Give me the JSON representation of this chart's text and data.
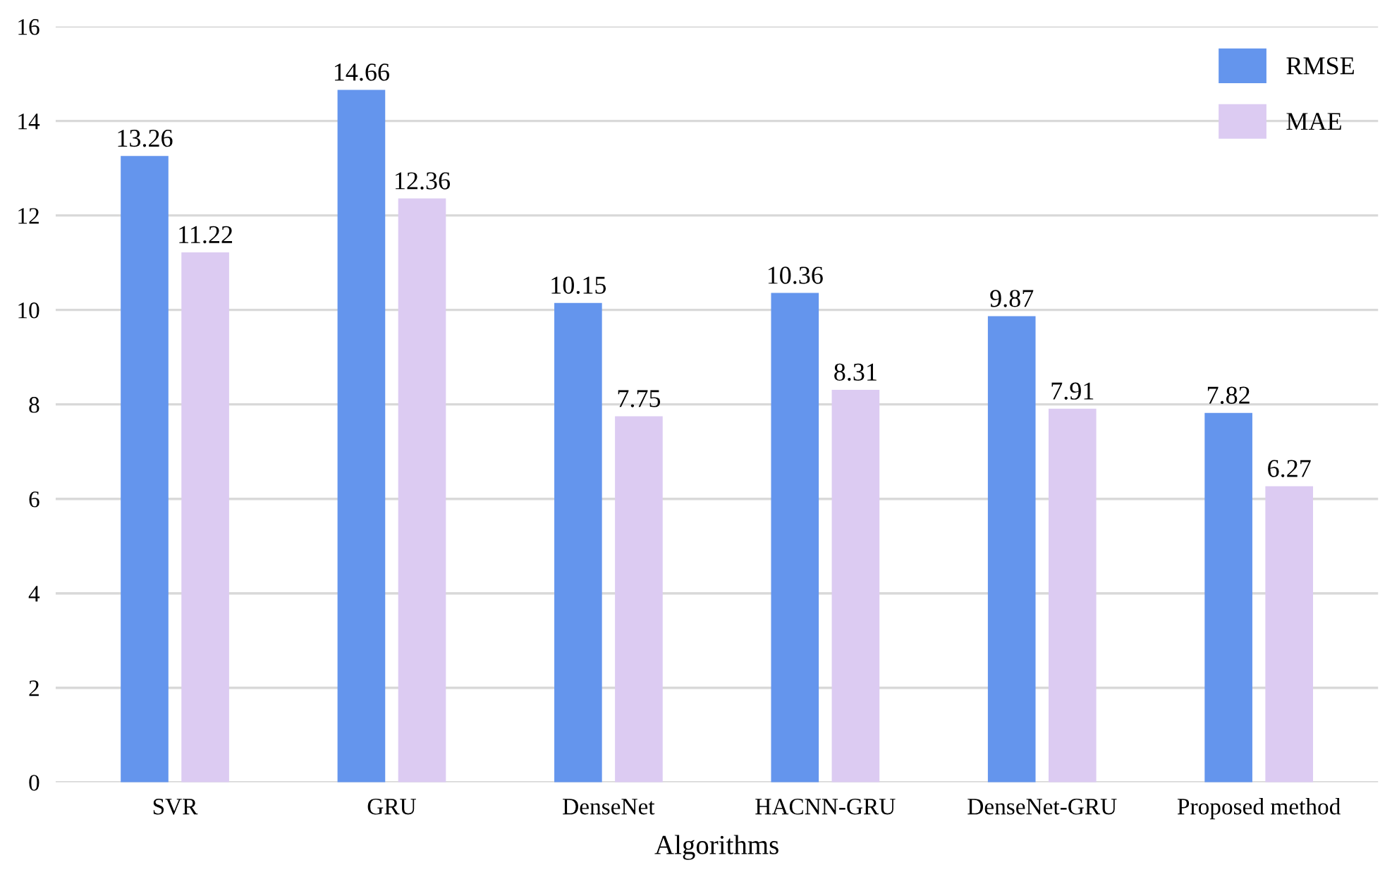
{
  "chart_data": {
    "type": "bar",
    "xlabel": "Algorithms",
    "categories": [
      "SVR",
      "GRU",
      "DenseNet",
      "HACNN-GRU",
      "DenseNet-GRU",
      "Proposed method"
    ],
    "series": [
      {
        "name": "RMSE",
        "color": "#6495ed",
        "values": [
          13.26,
          14.66,
          10.15,
          10.36,
          9.87,
          7.82
        ]
      },
      {
        "name": "MAE",
        "color": "#dccbf2",
        "values": [
          11.22,
          12.36,
          7.75,
          8.31,
          7.91,
          6.27
        ]
      }
    ],
    "ylim": [
      0,
      16
    ],
    "yticks": [
      0,
      2,
      4,
      6,
      8,
      10,
      12,
      14,
      16
    ],
    "grid": "y",
    "legend": "top right",
    "data_labels": true
  }
}
